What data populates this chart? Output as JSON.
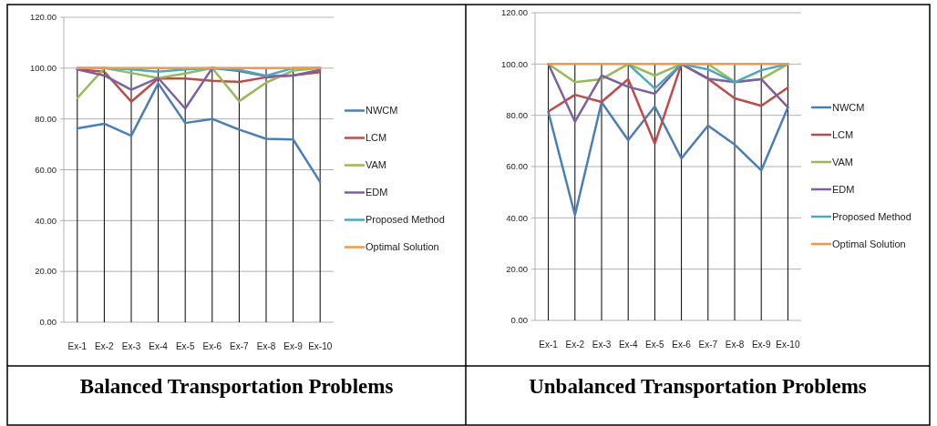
{
  "chart_data": [
    {
      "type": "line",
      "title": "Balanced Transportation Problems",
      "categories": [
        "Ex-1",
        "Ex-2",
        "Ex-3",
        "Ex-4",
        "Ex-5",
        "Ex-6",
        "Ex-7",
        "Ex-8",
        "Ex-9",
        "Ex-10"
      ],
      "series": [
        {
          "name": "NWCM",
          "color": "#4a7ebb",
          "values": [
            76.3,
            78.1,
            73.4,
            94,
            78.4,
            80,
            75.8,
            72.2,
            71.9,
            55.2
          ]
        },
        {
          "name": "LCM",
          "color": "#be4b48",
          "values": [
            99.5,
            98.6,
            86.8,
            95.9,
            95.9,
            95,
            94.6,
            96.4,
            97.2,
            98.4
          ]
        },
        {
          "name": "VAM",
          "color": "#98b954",
          "values": [
            88.2,
            100,
            98.1,
            96.1,
            97.9,
            100,
            87,
            94.3,
            99,
            100
          ]
        },
        {
          "name": "EDM",
          "color": "#7d60a0",
          "values": [
            99.5,
            97.1,
            91.5,
            96.1,
            84.1,
            100,
            98.9,
            96.8,
            97.1,
            99.3
          ]
        },
        {
          "name": "Proposed Method",
          "color": "#46aac5",
          "values": [
            100,
            100,
            99.5,
            98.6,
            99.5,
            100,
            99.3,
            97,
            100,
            100
          ]
        },
        {
          "name": "Optimal Solution",
          "color": "#f79646",
          "values": [
            100,
            100,
            100,
            100,
            100,
            100,
            100,
            100,
            100,
            100
          ]
        }
      ],
      "ylim": [
        0,
        120
      ],
      "yticks": [
        {
          "value": 0,
          "label": "0.00"
        },
        {
          "value": 20,
          "label": "20.00"
        },
        {
          "value": 40,
          "label": "40.00"
        },
        {
          "value": 60,
          "label": "60.00"
        },
        {
          "value": 80,
          "label": "80.00"
        },
        {
          "value": 100,
          "label": "100.00"
        },
        {
          "value": 120,
          "label": "120.00"
        }
      ],
      "grid": true,
      "legend": "right"
    },
    {
      "type": "line",
      "title": "Unbalanced Transportation Problems",
      "categories": [
        "Ex-1",
        "Ex-2",
        "Ex-3",
        "Ex-4",
        "Ex-5",
        "Ex-6",
        "Ex-7",
        "Ex-8",
        "Ex-9",
        "Ex-10"
      ],
      "series": [
        {
          "name": "NWCM",
          "color": "#4a7ebb",
          "values": [
            81.3,
            41.1,
            85.1,
            70.3,
            83.4,
            63.2,
            76,
            68.6,
            58.5,
            83.1
          ]
        },
        {
          "name": "LCM",
          "color": "#be4b48",
          "values": [
            81.5,
            88,
            85.2,
            94.1,
            68.9,
            100,
            94.3,
            86.6,
            83.7,
            90.8
          ]
        },
        {
          "name": "VAM",
          "color": "#98b954",
          "values": [
            100,
            92.9,
            94.1,
            100,
            95.5,
            100,
            100,
            93,
            94.1,
            100
          ]
        },
        {
          "name": "EDM",
          "color": "#7d60a0",
          "values": [
            100,
            77.5,
            95.5,
            91.1,
            88.4,
            100,
            94.3,
            92.9,
            94.1,
            83.1
          ]
        },
        {
          "name": "Proposed Method",
          "color": "#46aac5",
          "values": [
            null,
            null,
            null,
            100,
            90.5,
            100,
            97.9,
            92.9,
            97.6,
            100
          ]
        },
        {
          "name": "Optimal Solution",
          "color": "#f79646",
          "values": [
            100,
            100,
            100,
            100,
            100,
            100,
            100,
            100,
            100,
            100
          ]
        }
      ],
      "ylim": [
        0,
        120
      ],
      "yticks": [
        {
          "value": 0,
          "label": "0.00"
        },
        {
          "value": 20,
          "label": "20.00"
        },
        {
          "value": 40,
          "label": "40.00"
        },
        {
          "value": 60,
          "label": "60.00"
        },
        {
          "value": 80,
          "label": "80.00"
        },
        {
          "value": 100,
          "label": "100.00"
        },
        {
          "value": 120,
          "label": "120.00"
        }
      ],
      "grid": true,
      "legend": "right"
    }
  ]
}
